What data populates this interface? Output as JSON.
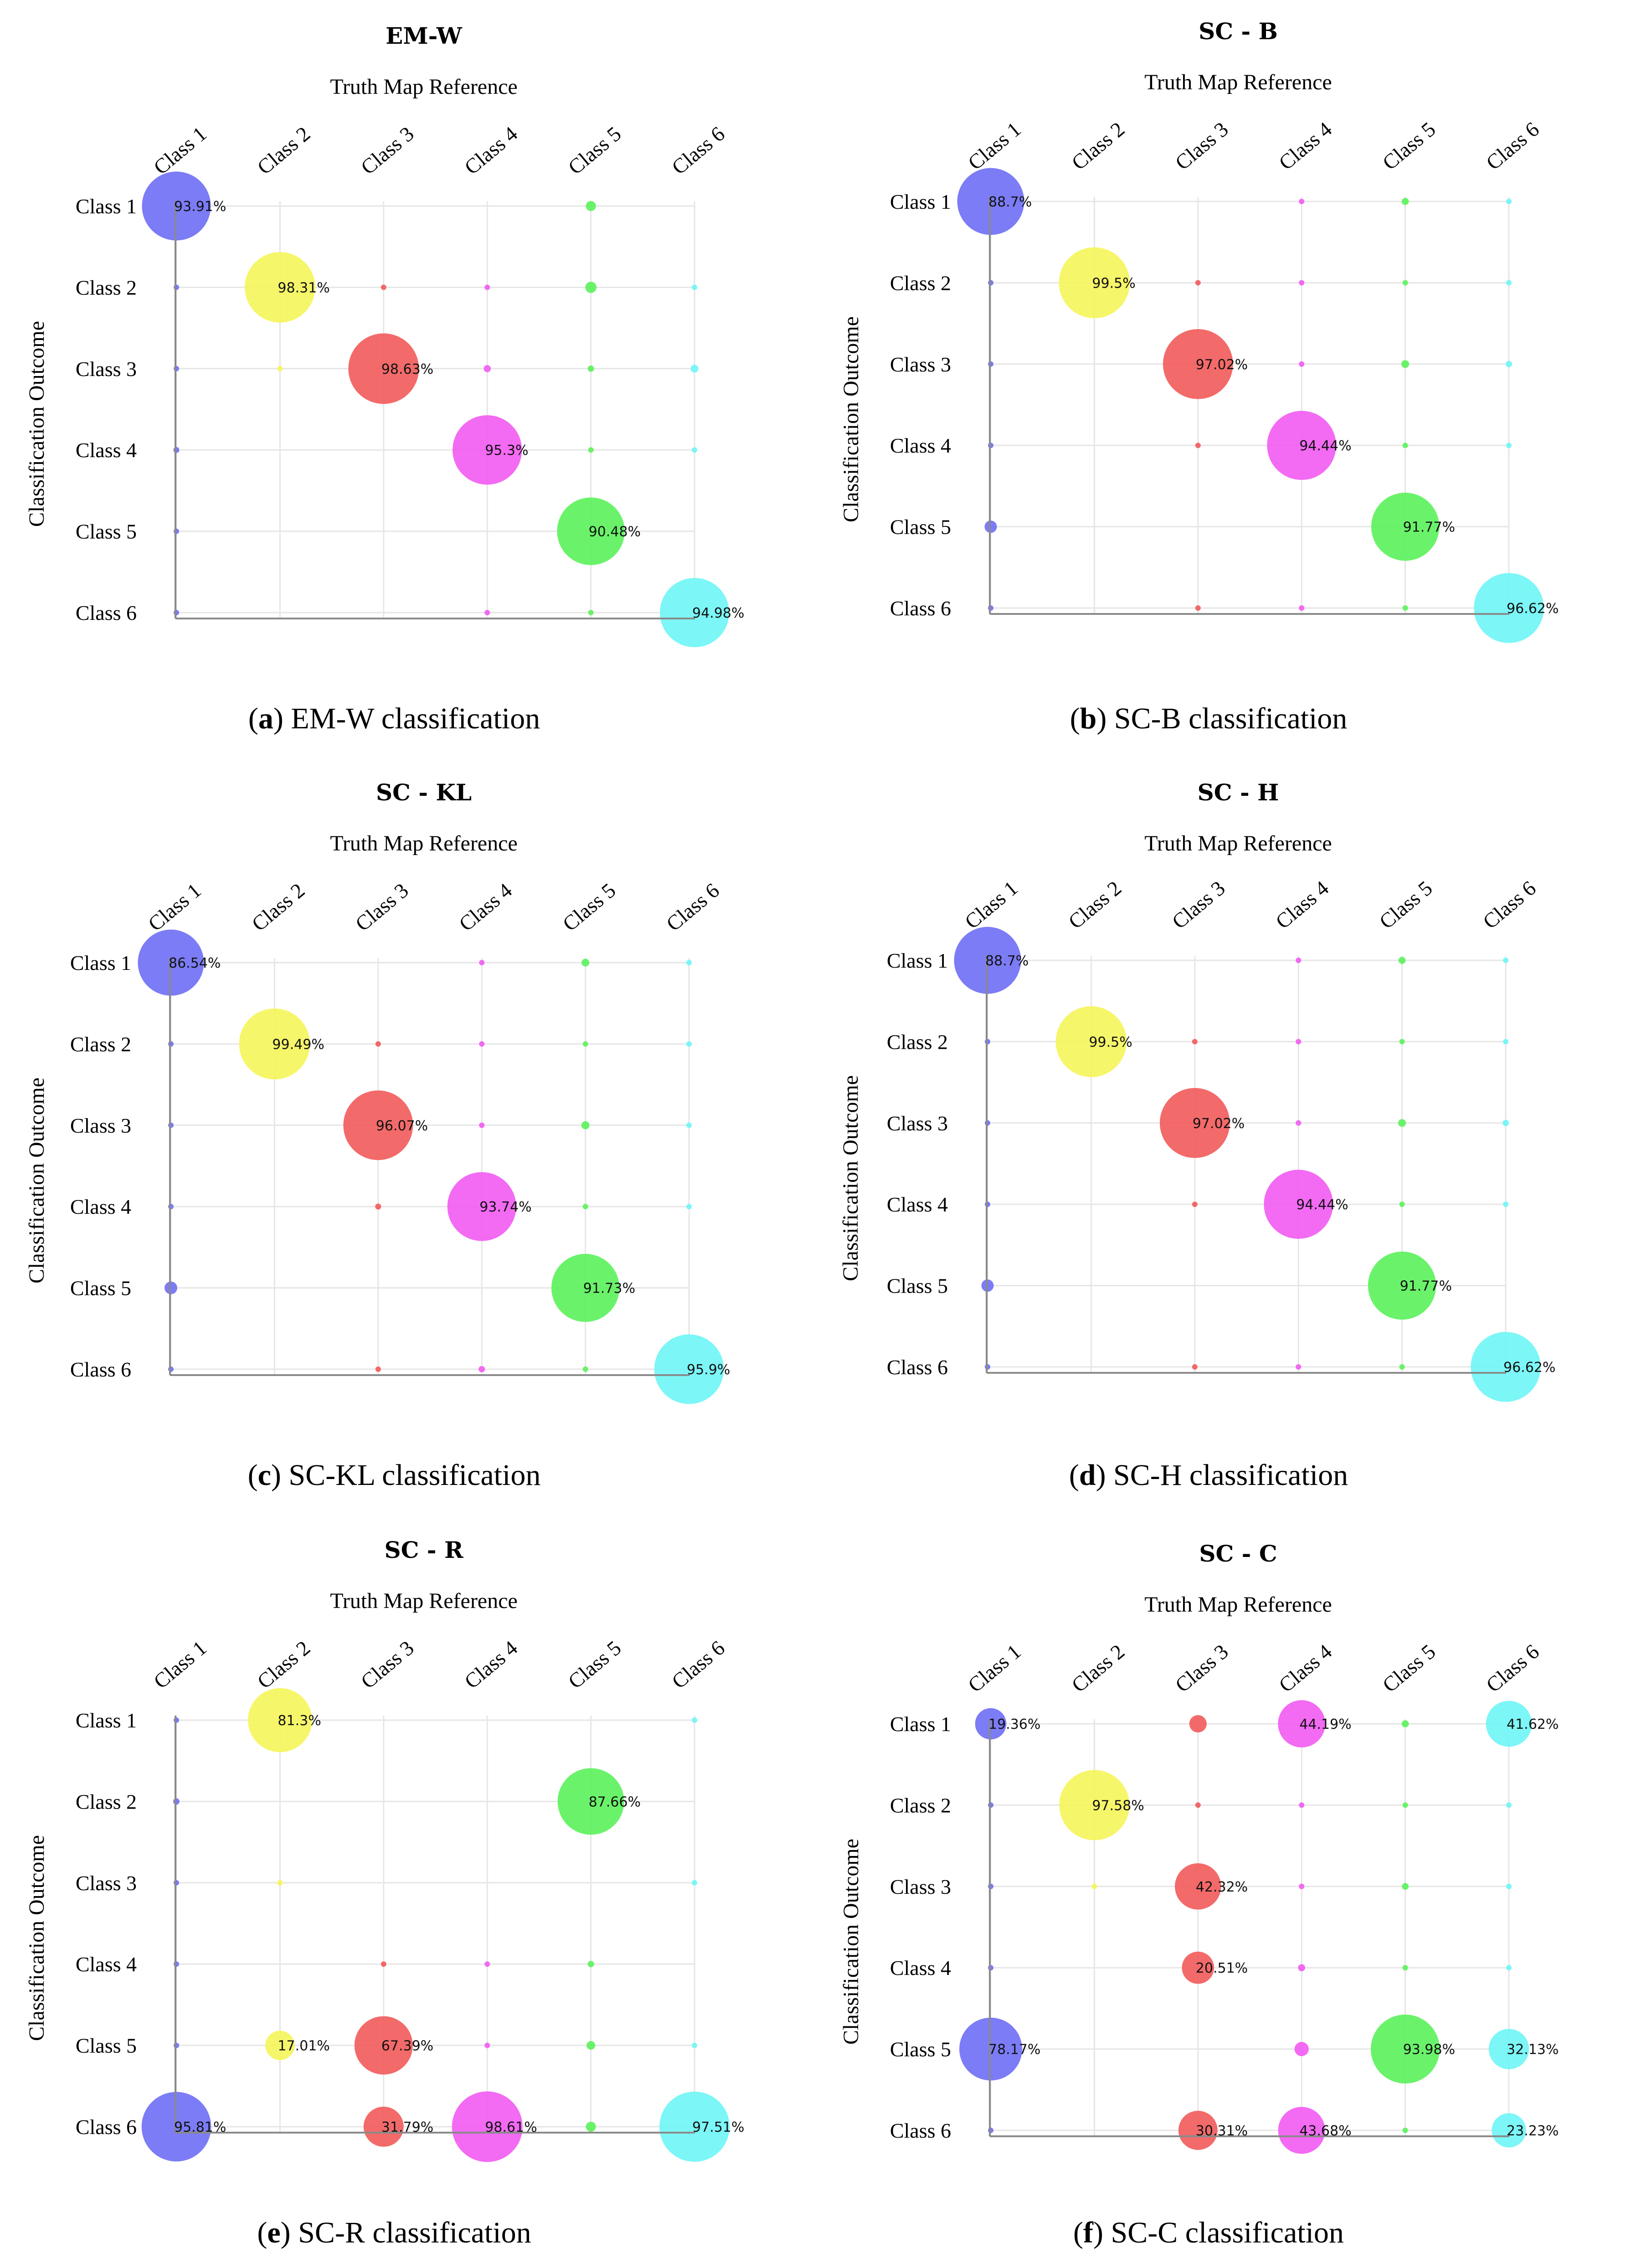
{
  "figure": {
    "subtitle": "Truth Map Reference",
    "y_title": "Classification Outcome",
    "classes": [
      "Class 1",
      "Class 2",
      "Class 3",
      "Class 4",
      "Class 5",
      "Class 6"
    ],
    "class_colors": [
      "#6e6ef5",
      "#f5f55a",
      "#f25a5a",
      "#f25af2",
      "#5af25a",
      "#6ef5f5"
    ]
  },
  "chart_data": [
    {
      "type": "bubble-matrix",
      "title": "EM-W",
      "caption_letter": "a",
      "caption_text": "EM-W classification",
      "xlabel": "Truth Map Reference",
      "ylabel": "Classification Outcome",
      "labeled": [
        {
          "row": 1,
          "col": 1,
          "value": 93.91,
          "label": "93.91%"
        },
        {
          "row": 2,
          "col": 2,
          "value": 98.31,
          "label": "98.31%"
        },
        {
          "row": 3,
          "col": 3,
          "value": 98.63,
          "label": "98.63%"
        },
        {
          "row": 4,
          "col": 4,
          "value": 95.3,
          "label": "95.3%"
        },
        {
          "row": 5,
          "col": 5,
          "value": 90.48,
          "label": "90.48%"
        },
        {
          "row": 6,
          "col": 6,
          "value": 94.98,
          "label": "94.98%"
        }
      ],
      "minor": [
        {
          "row": 1,
          "col": 5,
          "value": 2.0
        },
        {
          "row": 2,
          "col": 1,
          "value": 0.5
        },
        {
          "row": 2,
          "col": 3,
          "value": 0.4
        },
        {
          "row": 2,
          "col": 4,
          "value": 0.6
        },
        {
          "row": 2,
          "col": 5,
          "value": 2.5
        },
        {
          "row": 2,
          "col": 6,
          "value": 0.5
        },
        {
          "row": 3,
          "col": 1,
          "value": 0.4
        },
        {
          "row": 3,
          "col": 2,
          "value": 0.3
        },
        {
          "row": 3,
          "col": 4,
          "value": 1.0
        },
        {
          "row": 3,
          "col": 5,
          "value": 0.8
        },
        {
          "row": 3,
          "col": 6,
          "value": 1.2
        },
        {
          "row": 4,
          "col": 1,
          "value": 0.7
        },
        {
          "row": 4,
          "col": 5,
          "value": 0.6
        },
        {
          "row": 4,
          "col": 6,
          "value": 0.4
        },
        {
          "row": 5,
          "col": 1,
          "value": 0.2
        },
        {
          "row": 6,
          "col": 1,
          "value": 0.5
        },
        {
          "row": 6,
          "col": 4,
          "value": 0.3
        },
        {
          "row": 6,
          "col": 5,
          "value": 0.5
        }
      ]
    },
    {
      "type": "bubble-matrix",
      "title": "SC - B",
      "caption_letter": "b",
      "caption_text": "SC-B classification",
      "xlabel": "Truth Map Reference",
      "ylabel": "Classification Outcome",
      "labeled": [
        {
          "row": 1,
          "col": 1,
          "value": 88.7,
          "label": "88.7%"
        },
        {
          "row": 2,
          "col": 2,
          "value": 99.5,
          "label": "99.5%"
        },
        {
          "row": 3,
          "col": 3,
          "value": 97.02,
          "label": "97.02%"
        },
        {
          "row": 4,
          "col": 4,
          "value": 94.44,
          "label": "94.44%"
        },
        {
          "row": 5,
          "col": 5,
          "value": 91.77,
          "label": "91.77%"
        },
        {
          "row": 6,
          "col": 6,
          "value": 96.62,
          "label": "96.62%"
        }
      ],
      "minor": [
        {
          "row": 1,
          "col": 4,
          "value": 0.5
        },
        {
          "row": 1,
          "col": 5,
          "value": 1.0
        },
        {
          "row": 1,
          "col": 6,
          "value": 0.2
        },
        {
          "row": 2,
          "col": 1,
          "value": 0.1
        },
        {
          "row": 2,
          "col": 3,
          "value": 0.2
        },
        {
          "row": 2,
          "col": 4,
          "value": 0.2
        },
        {
          "row": 2,
          "col": 5,
          "value": 0.3
        },
        {
          "row": 2,
          "col": 6,
          "value": 0.1
        },
        {
          "row": 3,
          "col": 1,
          "value": 0.4
        },
        {
          "row": 3,
          "col": 4,
          "value": 0.6
        },
        {
          "row": 3,
          "col": 5,
          "value": 1.2
        },
        {
          "row": 3,
          "col": 6,
          "value": 0.8
        },
        {
          "row": 4,
          "col": 1,
          "value": 0.2
        },
        {
          "row": 4,
          "col": 3,
          "value": 0.5
        },
        {
          "row": 4,
          "col": 5,
          "value": 0.1
        },
        {
          "row": 4,
          "col": 6,
          "value": 0.2
        },
        {
          "row": 5,
          "col": 1,
          "value": 3.0
        },
        {
          "row": 6,
          "col": 1,
          "value": 0.6
        },
        {
          "row": 6,
          "col": 3,
          "value": 0.3
        },
        {
          "row": 6,
          "col": 4,
          "value": 0.6
        },
        {
          "row": 6,
          "col": 5,
          "value": 0.6
        }
      ]
    },
    {
      "type": "bubble-matrix",
      "title": "SC - KL",
      "caption_letter": "c",
      "caption_text": "SC-KL classification",
      "xlabel": "Truth Map Reference",
      "ylabel": "Classification Outcome",
      "labeled": [
        {
          "row": 1,
          "col": 1,
          "value": 86.54,
          "label": "86.54%"
        },
        {
          "row": 2,
          "col": 2,
          "value": 99.49,
          "label": "99.49%"
        },
        {
          "row": 3,
          "col": 3,
          "value": 96.07,
          "label": "96.07%"
        },
        {
          "row": 4,
          "col": 4,
          "value": 93.74,
          "label": "93.74%"
        },
        {
          "row": 5,
          "col": 5,
          "value": 91.73,
          "label": "91.73%"
        },
        {
          "row": 6,
          "col": 6,
          "value": 95.9,
          "label": "95.9%"
        }
      ],
      "minor": [
        {
          "row": 1,
          "col": 4,
          "value": 0.5
        },
        {
          "row": 1,
          "col": 5,
          "value": 1.2
        },
        {
          "row": 1,
          "col": 6,
          "value": 0.2
        },
        {
          "row": 2,
          "col": 1,
          "value": 0.1
        },
        {
          "row": 2,
          "col": 3,
          "value": 0.3
        },
        {
          "row": 2,
          "col": 4,
          "value": 0.3
        },
        {
          "row": 2,
          "col": 5,
          "value": 0.4
        },
        {
          "row": 2,
          "col": 6,
          "value": 0.5
        },
        {
          "row": 3,
          "col": 1,
          "value": 0.3
        },
        {
          "row": 3,
          "col": 4,
          "value": 0.6
        },
        {
          "row": 3,
          "col": 5,
          "value": 1.3
        },
        {
          "row": 3,
          "col": 6,
          "value": 0.4
        },
        {
          "row": 4,
          "col": 1,
          "value": 0.1
        },
        {
          "row": 4,
          "col": 3,
          "value": 0.7
        },
        {
          "row": 4,
          "col": 5,
          "value": 0.1
        },
        {
          "row": 4,
          "col": 6,
          "value": 0.2
        },
        {
          "row": 5,
          "col": 1,
          "value": 3.2
        },
        {
          "row": 6,
          "col": 1,
          "value": 0.6
        },
        {
          "row": 6,
          "col": 3,
          "value": 0.5
        },
        {
          "row": 6,
          "col": 4,
          "value": 0.8
        },
        {
          "row": 6,
          "col": 5,
          "value": 0.5
        }
      ]
    },
    {
      "type": "bubble-matrix",
      "title": "SC - H",
      "caption_letter": "d",
      "caption_text": "SC-H classification",
      "xlabel": "Truth Map Reference",
      "ylabel": "Classification Outcome",
      "labeled": [
        {
          "row": 1,
          "col": 1,
          "value": 88.7,
          "label": "88.7%"
        },
        {
          "row": 2,
          "col": 2,
          "value": 99.5,
          "label": "99.5%"
        },
        {
          "row": 3,
          "col": 3,
          "value": 97.02,
          "label": "97.02%"
        },
        {
          "row": 4,
          "col": 4,
          "value": 94.44,
          "label": "94.44%"
        },
        {
          "row": 5,
          "col": 5,
          "value": 91.77,
          "label": "91.77%"
        },
        {
          "row": 6,
          "col": 6,
          "value": 96.62,
          "label": "96.62%"
        }
      ],
      "minor": [
        {
          "row": 1,
          "col": 4,
          "value": 0.5
        },
        {
          "row": 1,
          "col": 5,
          "value": 1.0
        },
        {
          "row": 1,
          "col": 6,
          "value": 0.2
        },
        {
          "row": 2,
          "col": 1,
          "value": 0.1
        },
        {
          "row": 2,
          "col": 3,
          "value": 0.2
        },
        {
          "row": 2,
          "col": 4,
          "value": 0.2
        },
        {
          "row": 2,
          "col": 5,
          "value": 0.3
        },
        {
          "row": 2,
          "col": 6,
          "value": 0.1
        },
        {
          "row": 3,
          "col": 1,
          "value": 0.4
        },
        {
          "row": 3,
          "col": 4,
          "value": 0.6
        },
        {
          "row": 3,
          "col": 5,
          "value": 1.2
        },
        {
          "row": 3,
          "col": 6,
          "value": 0.8
        },
        {
          "row": 4,
          "col": 1,
          "value": 0.2
        },
        {
          "row": 4,
          "col": 3,
          "value": 0.5
        },
        {
          "row": 4,
          "col": 5,
          "value": 0.1
        },
        {
          "row": 4,
          "col": 6,
          "value": 0.2
        },
        {
          "row": 5,
          "col": 1,
          "value": 3.0
        },
        {
          "row": 6,
          "col": 1,
          "value": 0.6
        },
        {
          "row": 6,
          "col": 3,
          "value": 0.3
        },
        {
          "row": 6,
          "col": 4,
          "value": 0.6
        },
        {
          "row": 6,
          "col": 5,
          "value": 0.6
        }
      ]
    },
    {
      "type": "bubble-matrix",
      "title": "SC - R",
      "caption_letter": "e",
      "caption_text": "SC-R classification",
      "xlabel": "Truth Map Reference",
      "ylabel": "Classification Outcome",
      "labeled": [
        {
          "row": 1,
          "col": 2,
          "value": 81.3,
          "label": "81.3%"
        },
        {
          "row": 2,
          "col": 5,
          "value": 87.66,
          "label": "87.66%"
        },
        {
          "row": 5,
          "col": 2,
          "value": 17.01,
          "label": "17.01%"
        },
        {
          "row": 5,
          "col": 3,
          "value": 67.39,
          "label": "67.39%"
        },
        {
          "row": 6,
          "col": 1,
          "value": 95.81,
          "label": "95.81%"
        },
        {
          "row": 6,
          "col": 3,
          "value": 31.79,
          "label": "31.79%"
        },
        {
          "row": 6,
          "col": 4,
          "value": 98.61,
          "label": "98.61%"
        },
        {
          "row": 6,
          "col": 6,
          "value": 97.51,
          "label": "97.51%"
        }
      ],
      "minor": [
        {
          "row": 1,
          "col": 1,
          "value": 0.1
        },
        {
          "row": 1,
          "col": 6,
          "value": 0.2
        },
        {
          "row": 2,
          "col": 1,
          "value": 0.8
        },
        {
          "row": 3,
          "col": 1,
          "value": 0.1
        },
        {
          "row": 3,
          "col": 2,
          "value": 0.2
        },
        {
          "row": 3,
          "col": 6,
          "value": 0.3
        },
        {
          "row": 4,
          "col": 1,
          "value": 0.1
        },
        {
          "row": 4,
          "col": 3,
          "value": 0.1
        },
        {
          "row": 4,
          "col": 4,
          "value": 0.1
        },
        {
          "row": 4,
          "col": 5,
          "value": 0.8
        },
        {
          "row": 5,
          "col": 1,
          "value": 0.5
        },
        {
          "row": 5,
          "col": 4,
          "value": 0.6
        },
        {
          "row": 5,
          "col": 5,
          "value": 1.5
        },
        {
          "row": 5,
          "col": 6,
          "value": 0.4
        },
        {
          "row": 6,
          "col": 5,
          "value": 2.0
        }
      ]
    },
    {
      "type": "bubble-matrix",
      "title": "SC - C",
      "caption_letter": "f",
      "caption_text": "SC-C classification",
      "xlabel": "Truth Map Reference",
      "ylabel": "Classification Outcome",
      "labeled": [
        {
          "row": 1,
          "col": 1,
          "value": 19.36,
          "label": "19.36%"
        },
        {
          "row": 1,
          "col": 4,
          "value": 44.19,
          "label": "44.19%"
        },
        {
          "row": 1,
          "col": 6,
          "value": 41.62,
          "label": "41.62%"
        },
        {
          "row": 2,
          "col": 2,
          "value": 97.58,
          "label": "97.58%"
        },
        {
          "row": 3,
          "col": 3,
          "value": 42.32,
          "label": "42.32%"
        },
        {
          "row": 4,
          "col": 3,
          "value": 20.51,
          "label": "20.51%"
        },
        {
          "row": 5,
          "col": 1,
          "value": 78.17,
          "label": "78.17%"
        },
        {
          "row": 5,
          "col": 5,
          "value": 93.98,
          "label": "93.98%"
        },
        {
          "row": 5,
          "col": 6,
          "value": 32.13,
          "label": "32.13%"
        },
        {
          "row": 6,
          "col": 3,
          "value": 30.31,
          "label": "30.31%"
        },
        {
          "row": 6,
          "col": 4,
          "value": 43.68,
          "label": "43.68%"
        },
        {
          "row": 6,
          "col": 6,
          "value": 23.23,
          "label": "23.23%"
        }
      ],
      "minor": [
        {
          "row": 1,
          "col": 3,
          "value": 6.0
        },
        {
          "row": 1,
          "col": 5,
          "value": 1.0
        },
        {
          "row": 2,
          "col": 1,
          "value": 0.2
        },
        {
          "row": 2,
          "col": 3,
          "value": 0.3
        },
        {
          "row": 2,
          "col": 4,
          "value": 0.3
        },
        {
          "row": 2,
          "col": 5,
          "value": 0.2
        },
        {
          "row": 2,
          "col": 6,
          "value": 0.3
        },
        {
          "row": 3,
          "col": 1,
          "value": 0.3
        },
        {
          "row": 3,
          "col": 2,
          "value": 0.5
        },
        {
          "row": 3,
          "col": 4,
          "value": 0.6
        },
        {
          "row": 3,
          "col": 5,
          "value": 0.9
        },
        {
          "row": 3,
          "col": 6,
          "value": 0.6
        },
        {
          "row": 4,
          "col": 1,
          "value": 0.2
        },
        {
          "row": 4,
          "col": 4,
          "value": 1.0
        },
        {
          "row": 4,
          "col": 5,
          "value": 0.3
        },
        {
          "row": 4,
          "col": 6,
          "value": 0.4
        },
        {
          "row": 5,
          "col": 4,
          "value": 4.0
        },
        {
          "row": 6,
          "col": 1,
          "value": 0.2
        },
        {
          "row": 6,
          "col": 5,
          "value": 0.3
        }
      ]
    }
  ]
}
